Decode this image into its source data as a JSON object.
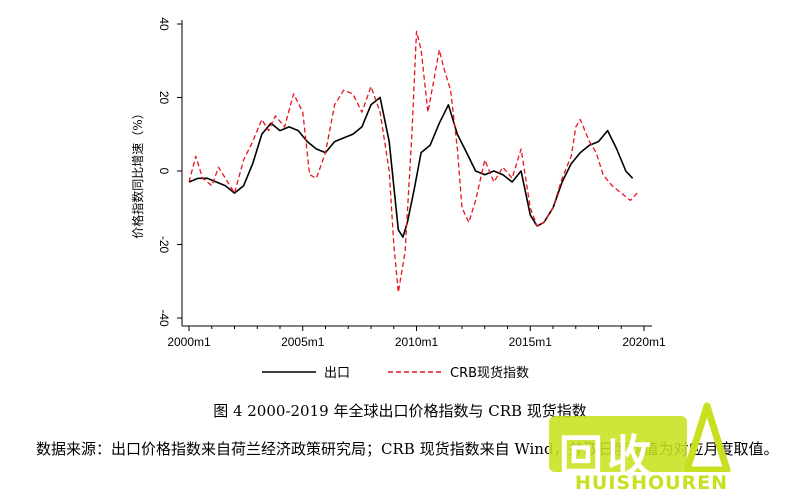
{
  "figure": {
    "caption": "图 4   2000-2019 年全球出口价格指数与 CRB 现货指数",
    "note": "数据来源：出口价格指数来自荷兰经济政策研究局；CRB 现货指数来自 Wind，并取日度均值为对应月度取值。"
  },
  "watermark": {
    "chars": "回收",
    "text": "HUISHOUREN",
    "brand_color": "#c8e020"
  },
  "chart_data": {
    "type": "line",
    "title": "",
    "xlabel": "",
    "ylabel": "价格指数同比增速（%）",
    "xlim": [
      2000.0,
      2020.4
    ],
    "ylim": [
      -40,
      40
    ],
    "yticks": [
      -40,
      -20,
      0,
      20,
      40
    ],
    "xticks": [
      {
        "value": 2000,
        "label": "2000m1"
      },
      {
        "value": 2005,
        "label": "2005m1"
      },
      {
        "value": 2010,
        "label": "2010m1"
      },
      {
        "value": 2015,
        "label": "2015m1"
      },
      {
        "value": 2020,
        "label": "2020m1"
      }
    ],
    "grid": false,
    "legend": "bottom",
    "series": [
      {
        "name": "出口",
        "style": "solid",
        "color": "#000000",
        "x": [
          2000.0,
          2000.4,
          2000.8,
          2001.2,
          2001.6,
          2002.0,
          2002.4,
          2002.8,
          2003.2,
          2003.6,
          2004.0,
          2004.4,
          2004.8,
          2005.2,
          2005.6,
          2006.0,
          2006.4,
          2006.8,
          2007.2,
          2007.6,
          2008.0,
          2008.4,
          2008.8,
          2009.2,
          2009.4,
          2009.6,
          2009.9,
          2010.2,
          2010.6,
          2011.0,
          2011.4,
          2011.8,
          2012.2,
          2012.6,
          2013.0,
          2013.4,
          2013.8,
          2014.2,
          2014.6,
          2015.0,
          2015.3,
          2015.6,
          2016.0,
          2016.4,
          2016.8,
          2017.2,
          2017.6,
          2018.0,
          2018.4,
          2018.8,
          2019.2,
          2019.5
        ],
        "y": [
          -3,
          -2,
          -2,
          -3,
          -4,
          -6,
          -4,
          2,
          10,
          13,
          11,
          12,
          11,
          8,
          6,
          5,
          8,
          9,
          10,
          12,
          18,
          20,
          8,
          -16,
          -18,
          -14,
          -5,
          5,
          7,
          13,
          18,
          10,
          5,
          0,
          -1,
          0,
          -1,
          -3,
          0,
          -12,
          -15,
          -14,
          -10,
          -3,
          2,
          5,
          7,
          8,
          11,
          6,
          0,
          -2
        ]
      },
      {
        "name": "CRB现货指数",
        "style": "dashed",
        "color": "#e8141c",
        "x": [
          2000.0,
          2000.3,
          2000.6,
          2001.0,
          2001.3,
          2001.6,
          2002.0,
          2002.4,
          2002.8,
          2003.2,
          2003.5,
          2003.8,
          2004.2,
          2004.6,
          2005.0,
          2005.3,
          2005.6,
          2006.0,
          2006.4,
          2006.8,
          2007.2,
          2007.6,
          2008.0,
          2008.4,
          2008.8,
          2009.0,
          2009.2,
          2009.5,
          2009.8,
          2010.0,
          2010.2,
          2010.5,
          2010.8,
          2011.0,
          2011.2,
          2011.5,
          2011.8,
          2012.0,
          2012.3,
          2012.6,
          2013.0,
          2013.4,
          2013.8,
          2014.2,
          2014.6,
          2015.0,
          2015.3,
          2015.6,
          2016.0,
          2016.4,
          2016.8,
          2017.0,
          2017.2,
          2017.6,
          2017.9,
          2018.2,
          2018.6,
          2019.0,
          2019.4,
          2019.7
        ],
        "y": [
          -3,
          4,
          -2,
          -4,
          1,
          -2,
          -6,
          3,
          8,
          14,
          11,
          15,
          12,
          21,
          16,
          -1,
          -2,
          5,
          18,
          22,
          21,
          16,
          23,
          16,
          0,
          -20,
          -33,
          -22,
          10,
          38,
          33,
          16,
          26,
          33,
          28,
          22,
          6,
          -10,
          -14,
          -8,
          3,
          -3,
          1,
          -2,
          6,
          -10,
          -15,
          -14,
          -10,
          -2,
          4,
          12,
          14,
          8,
          5,
          -1,
          -4,
          -6,
          -8,
          -6
        ]
      }
    ]
  }
}
